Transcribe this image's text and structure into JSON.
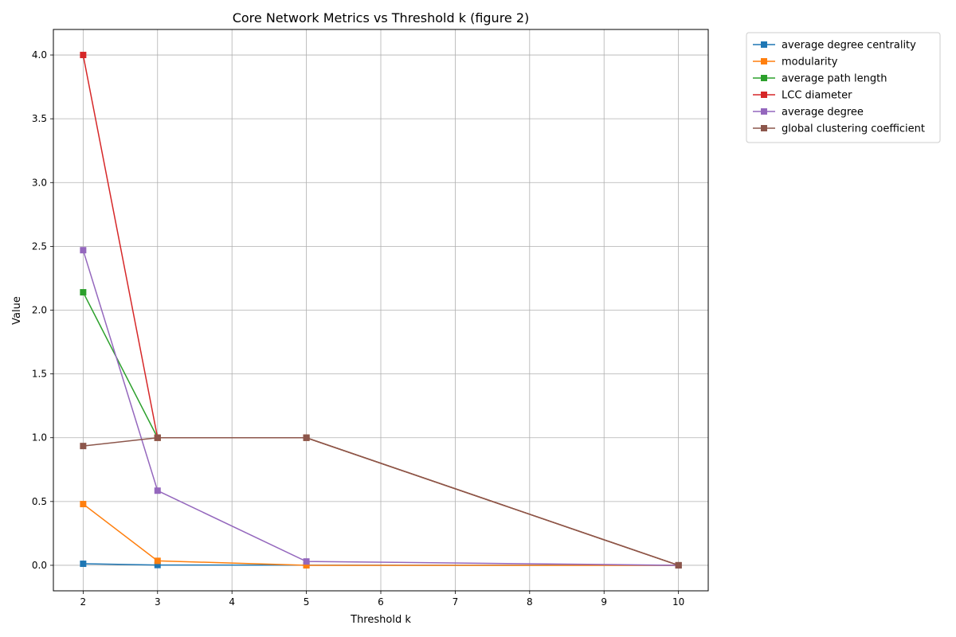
{
  "chart_data": {
    "type": "line",
    "title": "Core Network Metrics vs Threshold k (figure 2)",
    "xlabel": "Threshold k",
    "ylabel": "Value",
    "x": [
      2,
      3,
      5,
      10
    ],
    "xlim": [
      1.6,
      10.4
    ],
    "ylim": [
      -0.2,
      4.2
    ],
    "xticks": [
      "2",
      "3",
      "4",
      "5",
      "6",
      "7",
      "8",
      "9",
      "10"
    ],
    "yticks": [
      "0.0",
      "0.5",
      "1.0",
      "1.5",
      "2.0",
      "2.5",
      "3.0",
      "3.5",
      "4.0"
    ],
    "grid": true,
    "legend_position": "outside-top-right",
    "marker": "square",
    "series": [
      {
        "name": "average degree centrality",
        "color": "#1f77b4",
        "values": [
          0.012,
          0.002,
          0.001,
          0.0
        ]
      },
      {
        "name": "modularity",
        "color": "#ff7f0e",
        "values": [
          0.48,
          0.035,
          0.0,
          0.0
        ]
      },
      {
        "name": "average path length",
        "color": "#2ca02c",
        "values": [
          2.14,
          1.0,
          1.0,
          0.0
        ]
      },
      {
        "name": "LCC diameter",
        "color": "#d62728",
        "values": [
          4.0,
          1.0,
          1.0,
          0.0
        ]
      },
      {
        "name": "average degree",
        "color": "#9467bd",
        "values": [
          2.47,
          0.585,
          0.03,
          0.0
        ]
      },
      {
        "name": "global clustering coefficient",
        "color": "#8c564b",
        "values": [
          0.935,
          1.0,
          1.0,
          0.0
        ]
      }
    ]
  }
}
